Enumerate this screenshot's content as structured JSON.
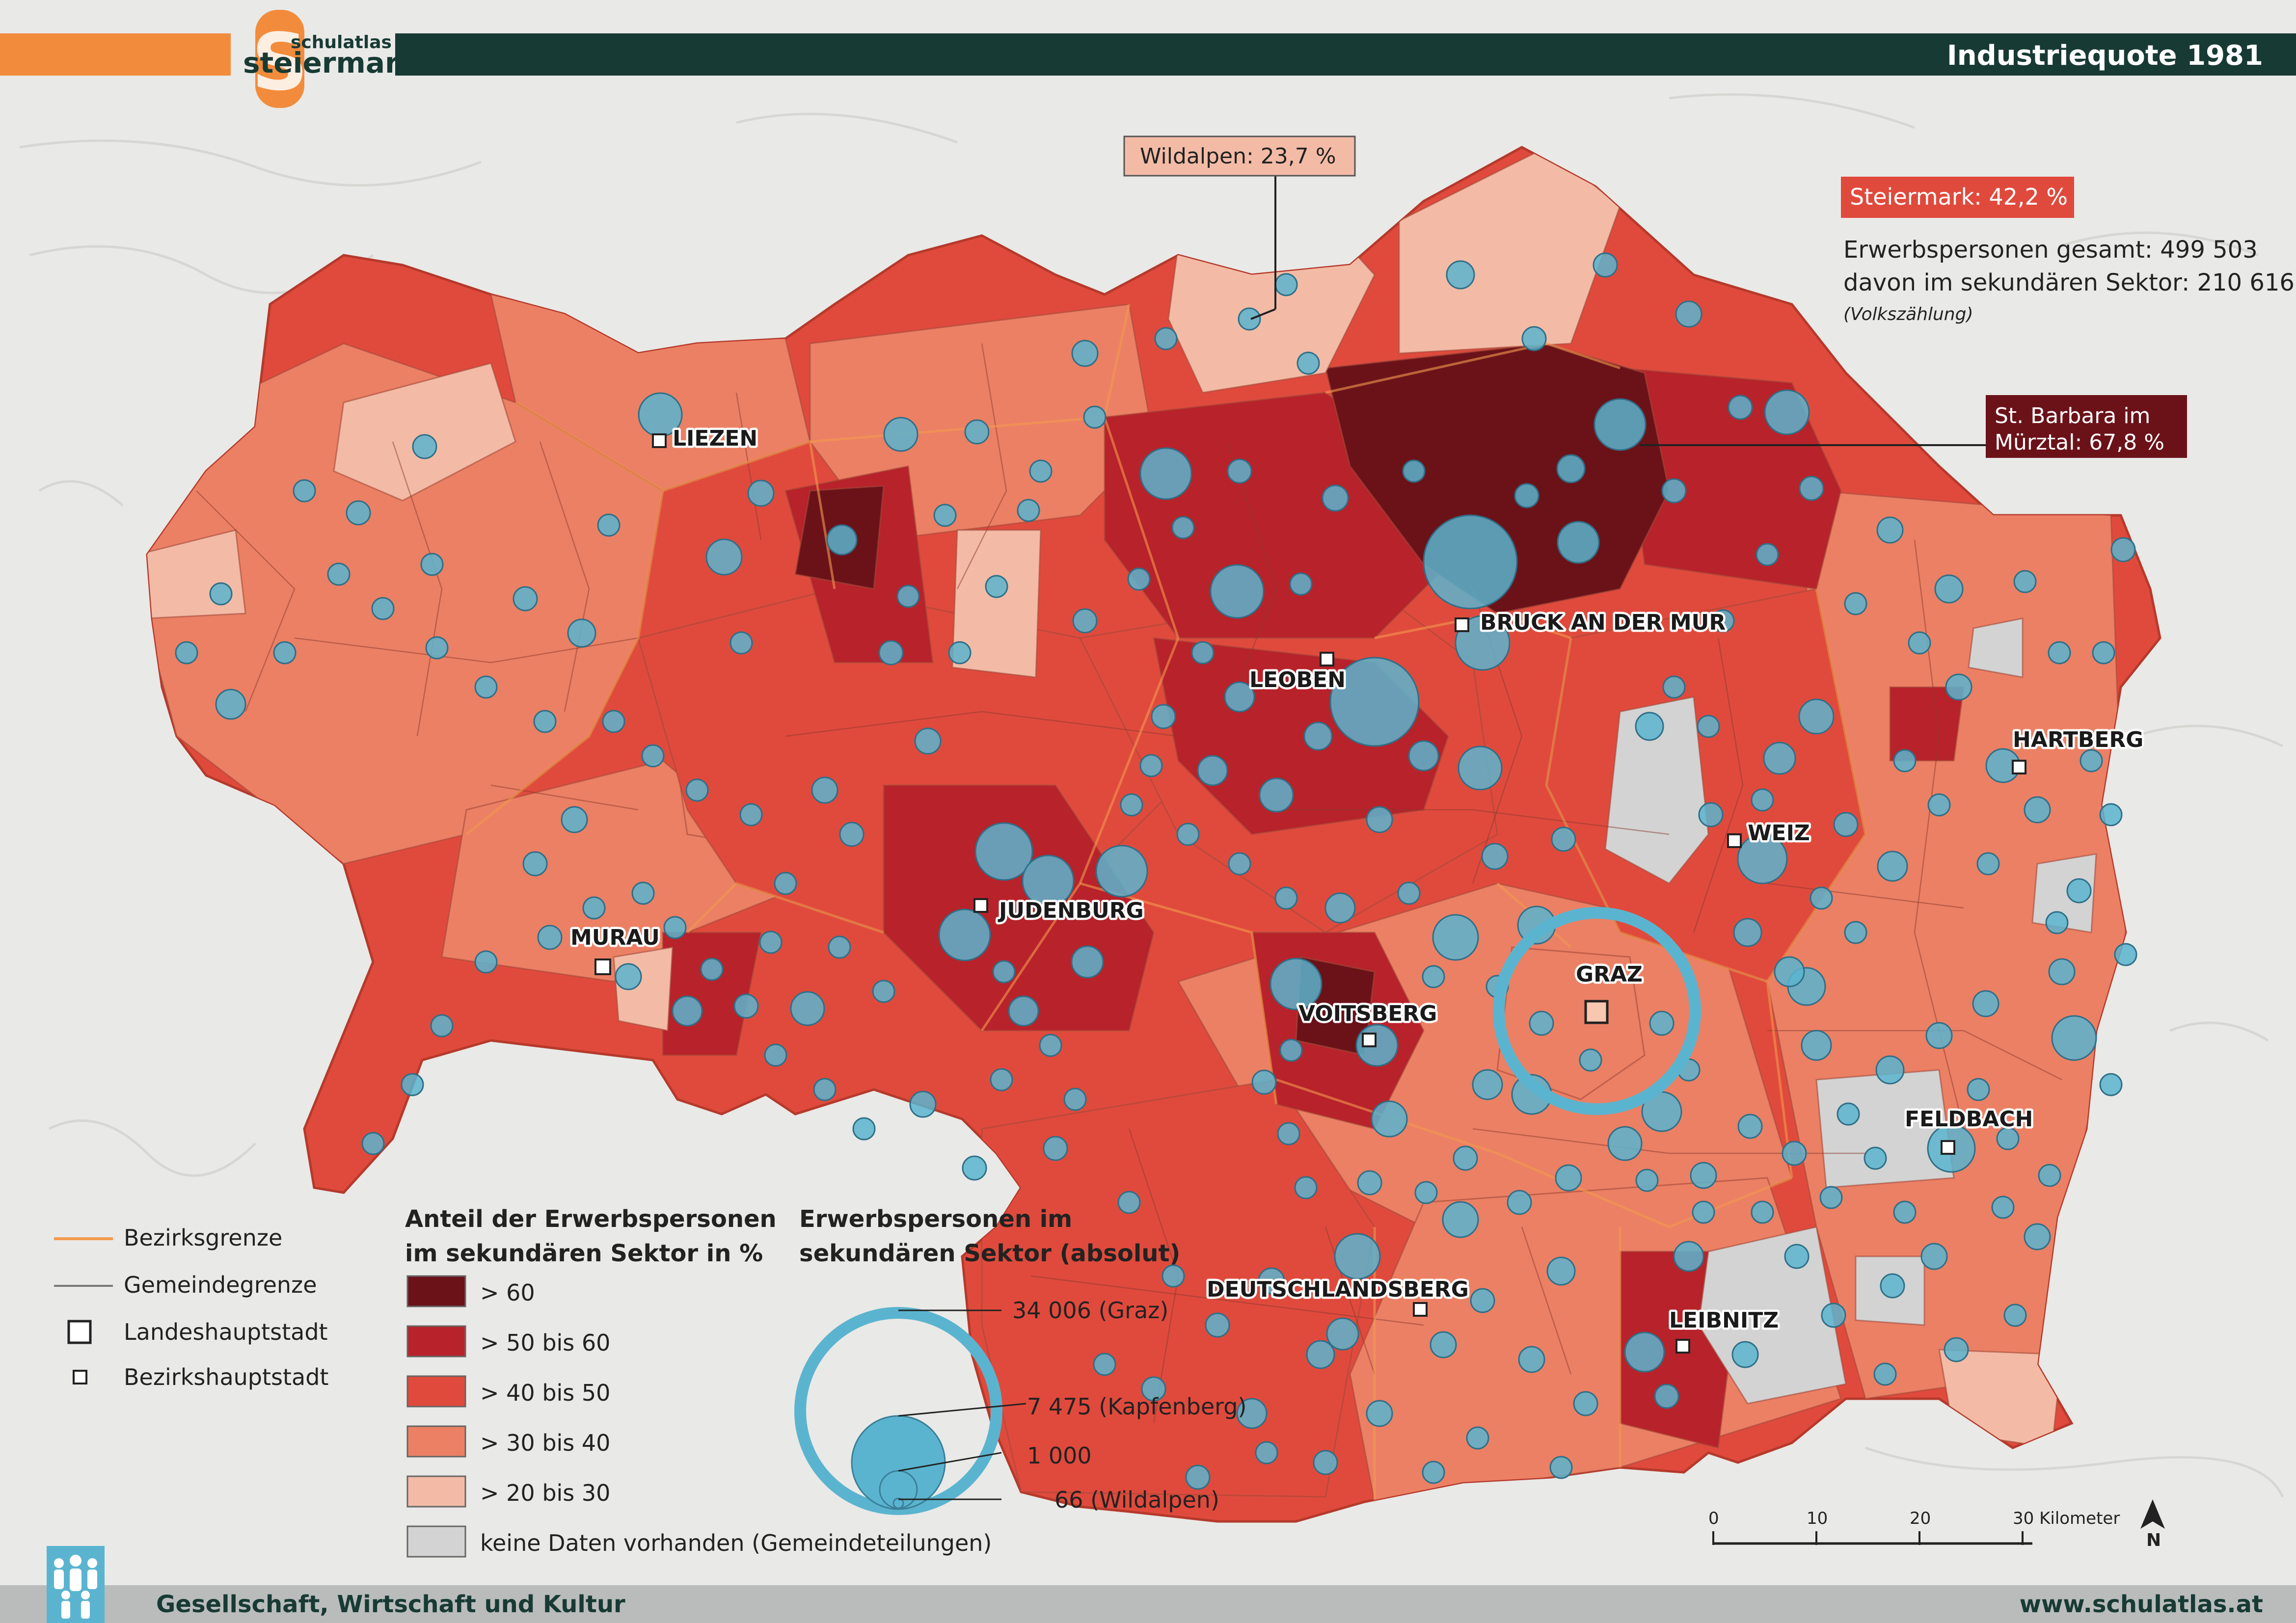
{
  "header": {
    "title": "Industriequote 1981",
    "logo_top": "schulatlas",
    "logo_main": "steiermark",
    "logo_letter": "S",
    "accent": "#f28c3c",
    "dark": "#183a35"
  },
  "footer": {
    "category": "Gesellschaft, Wirtschaft und Kultur",
    "url": "www.schulatlas.at"
  },
  "summary": {
    "total_badge": "Steiermark: 42,2 %",
    "line1": "Erwerbspersonen gesamt: 499 503",
    "line2": "davon im sekundären Sektor: 210 616",
    "source": "(Volkszählung)"
  },
  "callouts": {
    "wildalpen": "Wildalpen: 23,7 %",
    "stbarbara_l1": "St. Barbara im",
    "stbarbara_l2": "Mürztal: 67,8 %"
  },
  "cities": {
    "liezen": "LIEZEN",
    "bruck": "BRUCK AN DER MUR",
    "leoben": "LEOBEN",
    "hartberg": "HARTBERG",
    "weiz": "WEIZ",
    "murau": "MURAU",
    "judenburg": "JUDENBURG",
    "graz": "GRAZ",
    "voitsberg": "VOITSBERG",
    "feldbach": "FELDBACH",
    "deutschlandsberg": "DEUTSCHLANDSBERG",
    "leibnitz": "LEIBNITZ"
  },
  "legend_lines": {
    "bezirk": "Bezirksgrenze",
    "gemeinde": "Gemeindegrenze",
    "landeshauptstadt": "Landeshauptstadt",
    "bezirkshauptstadt": "Bezirkshauptstadt"
  },
  "legend_classes": {
    "title_l1": "Anteil der Erwerbspersonen",
    "title_l2": "im sekundären Sektor in %",
    "c1": "> 60",
    "c2": "> 50 bis 60",
    "c3": "> 40 bis 50",
    "c4": "> 30 bis 40",
    "c5": "> 20 bis 30",
    "c6": "keine Daten vorhanden (Gemeindeteilungen)",
    "colors": [
      "#6b1219",
      "#b8222a",
      "#e04a3c",
      "#ec8064",
      "#f3bba6",
      "#d3d3d3"
    ]
  },
  "legend_circles": {
    "title_l1": "Erwerbspersonen im",
    "title_l2": "sekundären Sektor (absolut)",
    "graz": "34 006 (Graz)",
    "kapfenberg": "7 475 (Kapfenberg)",
    "thousand": "1 000",
    "wildalpen": "66 (Wildalpen)",
    "circle_color": "#5bb4cf"
  },
  "scalebar": {
    "t0": "0",
    "t10": "10",
    "t20": "20",
    "t30": "30 Kilometer",
    "north": "N"
  }
}
